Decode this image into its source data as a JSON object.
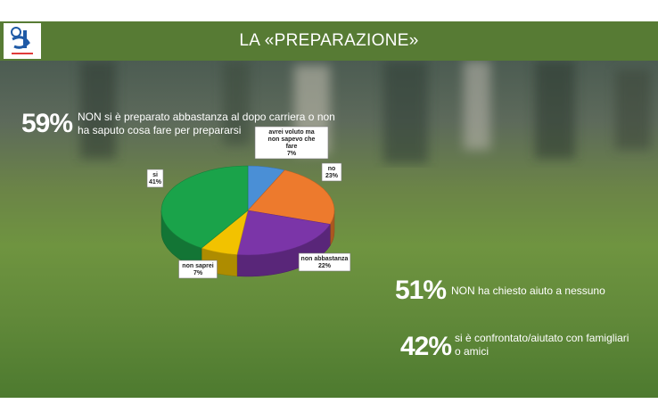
{
  "header": {
    "title": "LA «PREPARAZIONE»",
    "color": "#577b34"
  },
  "stats": [
    {
      "value": "59%",
      "text": "NON si è preparato abbastanza al dopo carriera o non ha saputo cosa fare per prepararsi"
    },
    {
      "value": "51%",
      "text": "NON ha chiesto aiuto a nessuno"
    },
    {
      "value": "42%",
      "text": "si è confrontato/aiutato con famigliari o amici"
    }
  ],
  "chart_data": {
    "type": "pie",
    "style": "3d",
    "slices": [
      {
        "label": "avrei voluto ma non sapevo che fare",
        "value": 7,
        "display": "7%",
        "color": "#4a8fd6"
      },
      {
        "label": "no",
        "value": 23,
        "display": "23%",
        "color": "#ed7a2d"
      },
      {
        "label": "non abbastanza",
        "value": 22,
        "display": "22%",
        "color": "#7b35a8"
      },
      {
        "label": "non saprei",
        "value": 7,
        "display": "7%",
        "color": "#f2c200"
      },
      {
        "label": "si",
        "value": 41,
        "display": "41%",
        "color": "#1aa34a"
      }
    ]
  }
}
